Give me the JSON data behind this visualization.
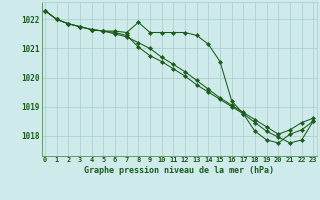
{
  "title": "Graphe pression niveau de la mer (hPa)",
  "background_color": "#ceeaea",
  "grid_color": "#b0d0d0",
  "line_color": "#1a5c1a",
  "ylim": [
    1017.3,
    1022.6
  ],
  "yticks": [
    1018,
    1019,
    1020,
    1021,
    1022
  ],
  "xlim": [
    -0.3,
    23.3
  ],
  "x_labels": [
    "0",
    "1",
    "2",
    "3",
    "4",
    "5",
    "6",
    "7",
    "8",
    "9",
    "10",
    "11",
    "12",
    "13",
    "14",
    "15",
    "16",
    "17",
    "18",
    "19",
    "20",
    "21",
    "22",
    "23"
  ],
  "series1": [
    1022.3,
    1022.0,
    1021.85,
    1021.75,
    1021.65,
    1021.6,
    1021.6,
    1021.55,
    1021.9,
    1021.55,
    1021.55,
    1021.55,
    1021.55,
    1021.45,
    1021.15,
    1020.55,
    1019.2,
    1018.75,
    1018.15,
    1017.85,
    1017.75,
    1018.05,
    1018.2,
    1018.5
  ],
  "series2": [
    1022.3,
    1022.0,
    1021.85,
    1021.75,
    1021.65,
    1021.6,
    1021.55,
    1021.45,
    1021.05,
    1020.75,
    1020.55,
    1020.3,
    1020.05,
    1019.75,
    1019.5,
    1019.25,
    1019.0,
    1018.75,
    1018.45,
    1018.15,
    1017.95,
    1017.75,
    1017.85,
    1018.5
  ],
  "series3": [
    1022.3,
    1022.0,
    1021.85,
    1021.75,
    1021.65,
    1021.6,
    1021.5,
    1021.4,
    1021.2,
    1021.0,
    1020.7,
    1020.45,
    1020.2,
    1019.9,
    1019.6,
    1019.3,
    1019.05,
    1018.8,
    1018.55,
    1018.3,
    1018.05,
    1018.2,
    1018.45,
    1018.6
  ]
}
